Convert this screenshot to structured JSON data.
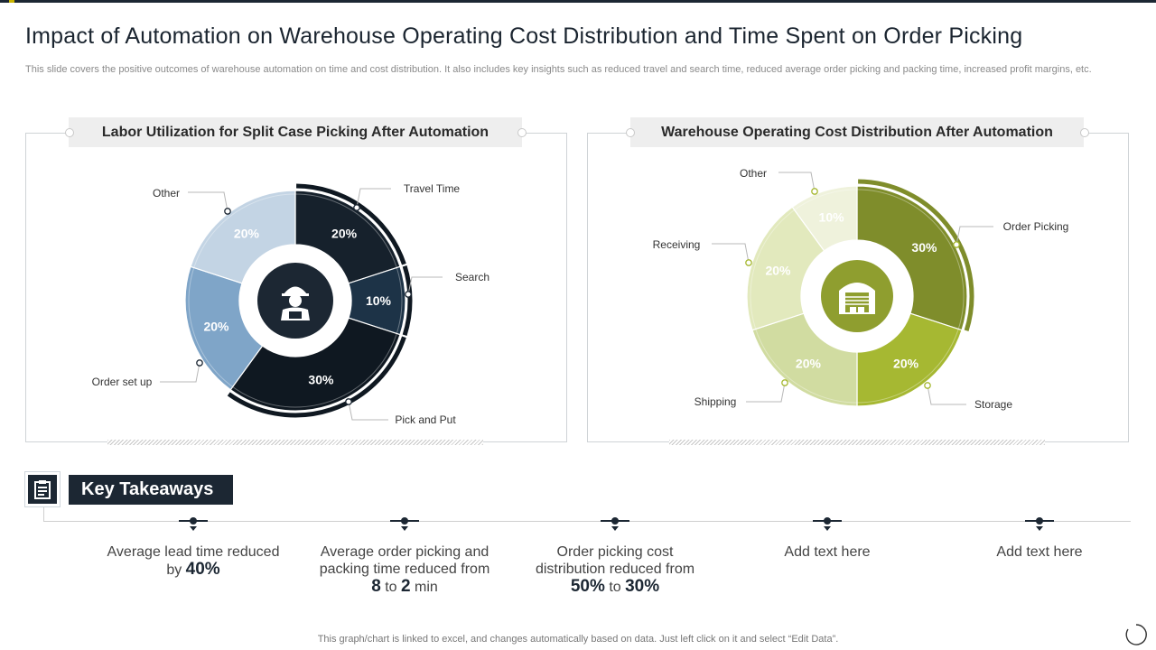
{
  "title": "Impact of Automation on Warehouse Operating Cost Distribution and Time Spent on Order Picking",
  "subtitle": "This slide covers the positive outcomes of warehouse automation on time and cost distribution. It also includes key insights such as reduced travel and search time, reduced average order picking and packing time,  increased profit margins, etc.",
  "chart_data": [
    {
      "type": "pie",
      "title": "Labor Utilization for Split Case Picking After Automation",
      "categories": [
        "Travel Time",
        "Search",
        "Pick and Put",
        "Order set up",
        "Other"
      ],
      "values": [
        20,
        10,
        30,
        20,
        20
      ],
      "value_labels": [
        "20%",
        "10%",
        "30%",
        "20%",
        "20%"
      ],
      "colors": [
        "#16212c",
        "#1d3347",
        "#0f1821",
        "#7fa5c8",
        "#c3d4e4"
      ],
      "label_colors": [
        "#ffffff",
        "#ffffff",
        "#ffffff",
        "#ffffff",
        "#ffffff"
      ],
      "center_icon": "worker-icon",
      "ring_accent": "#0f1821"
    },
    {
      "type": "pie",
      "title": "Warehouse Operating Cost Distribution After Automation",
      "categories": [
        "Order Picking",
        "Storage",
        "Shipping",
        "Receiving",
        "Other"
      ],
      "values": [
        30,
        20,
        20,
        20,
        10
      ],
      "value_labels": [
        "30%",
        "20%",
        "20%",
        "20%",
        "10%"
      ],
      "colors": [
        "#7f8d2b",
        "#a6b832",
        "#d1dca1",
        "#e2e9bd",
        "#eff2dc"
      ],
      "label_colors": [
        "#ffffff",
        "#ffffff",
        "#ffffff",
        "#ffffff",
        "#ffffff"
      ],
      "center_icon": "warehouse-icon",
      "ring_accent": "#7f8d2b"
    }
  ],
  "key_takeaways": {
    "title": "Key Takeaways",
    "icon": "clipboard-icon",
    "items": [
      {
        "pre": "Average lead time reduced by ",
        "bold1": "40%",
        "mid": "",
        "bold2": "",
        "post": ""
      },
      {
        "pre": "Average order picking and packing time reduced from ",
        "bold1": "8",
        "mid": " to ",
        "bold2": "2",
        "post": " min"
      },
      {
        "pre": "Order picking cost distribution reduced from ",
        "bold1": "50%",
        "mid": " to ",
        "bold2": "30%",
        "post": ""
      },
      {
        "pre": "Add text here",
        "bold1": "",
        "mid": "",
        "bold2": "",
        "post": ""
      },
      {
        "pre": "Add text here",
        "bold1": "",
        "mid": "",
        "bold2": "",
        "post": ""
      }
    ]
  },
  "footer": "This graph/chart is linked to excel,  and changes automatically based on data. Just left click on it and select “Edit Data”.",
  "accent_color": "#1c2733"
}
